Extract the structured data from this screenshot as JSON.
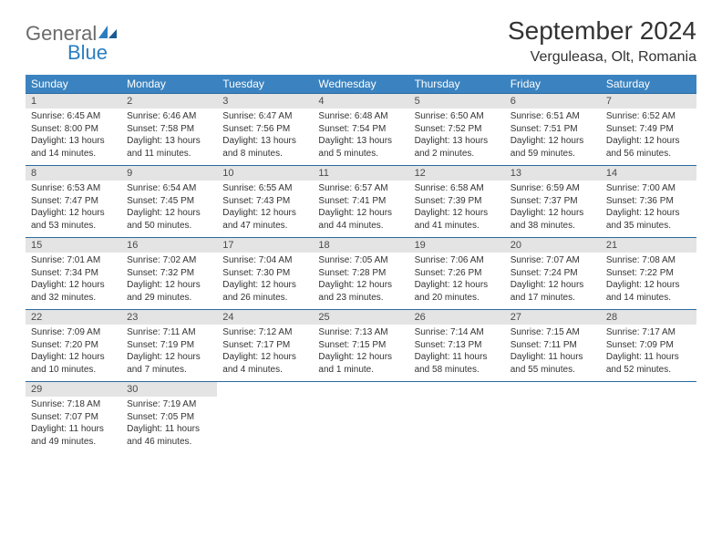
{
  "logo": {
    "text1": "General",
    "text2": "Blue"
  },
  "title": "September 2024",
  "location": "Verguleasa, Olt, Romania",
  "colors": {
    "header_bg": "#3b83c0",
    "header_text": "#ffffff",
    "daynum_bg": "#e4e4e4",
    "daynum_text": "#4a4a4a",
    "body_text": "#333333",
    "week_border": "#2a6aa0",
    "logo_gray": "#6b6b6b",
    "logo_blue": "#2a7ec0"
  },
  "weekdays": [
    "Sunday",
    "Monday",
    "Tuesday",
    "Wednesday",
    "Thursday",
    "Friday",
    "Saturday"
  ],
  "weeks": [
    [
      {
        "n": "1",
        "sr": "6:45 AM",
        "ss": "8:00 PM",
        "dl": "13 hours and 14 minutes."
      },
      {
        "n": "2",
        "sr": "6:46 AM",
        "ss": "7:58 PM",
        "dl": "13 hours and 11 minutes."
      },
      {
        "n": "3",
        "sr": "6:47 AM",
        "ss": "7:56 PM",
        "dl": "13 hours and 8 minutes."
      },
      {
        "n": "4",
        "sr": "6:48 AM",
        "ss": "7:54 PM",
        "dl": "13 hours and 5 minutes."
      },
      {
        "n": "5",
        "sr": "6:50 AM",
        "ss": "7:52 PM",
        "dl": "13 hours and 2 minutes."
      },
      {
        "n": "6",
        "sr": "6:51 AM",
        "ss": "7:51 PM",
        "dl": "12 hours and 59 minutes."
      },
      {
        "n": "7",
        "sr": "6:52 AM",
        "ss": "7:49 PM",
        "dl": "12 hours and 56 minutes."
      }
    ],
    [
      {
        "n": "8",
        "sr": "6:53 AM",
        "ss": "7:47 PM",
        "dl": "12 hours and 53 minutes."
      },
      {
        "n": "9",
        "sr": "6:54 AM",
        "ss": "7:45 PM",
        "dl": "12 hours and 50 minutes."
      },
      {
        "n": "10",
        "sr": "6:55 AM",
        "ss": "7:43 PM",
        "dl": "12 hours and 47 minutes."
      },
      {
        "n": "11",
        "sr": "6:57 AM",
        "ss": "7:41 PM",
        "dl": "12 hours and 44 minutes."
      },
      {
        "n": "12",
        "sr": "6:58 AM",
        "ss": "7:39 PM",
        "dl": "12 hours and 41 minutes."
      },
      {
        "n": "13",
        "sr": "6:59 AM",
        "ss": "7:37 PM",
        "dl": "12 hours and 38 minutes."
      },
      {
        "n": "14",
        "sr": "7:00 AM",
        "ss": "7:36 PM",
        "dl": "12 hours and 35 minutes."
      }
    ],
    [
      {
        "n": "15",
        "sr": "7:01 AM",
        "ss": "7:34 PM",
        "dl": "12 hours and 32 minutes."
      },
      {
        "n": "16",
        "sr": "7:02 AM",
        "ss": "7:32 PM",
        "dl": "12 hours and 29 minutes."
      },
      {
        "n": "17",
        "sr": "7:04 AM",
        "ss": "7:30 PM",
        "dl": "12 hours and 26 minutes."
      },
      {
        "n": "18",
        "sr": "7:05 AM",
        "ss": "7:28 PM",
        "dl": "12 hours and 23 minutes."
      },
      {
        "n": "19",
        "sr": "7:06 AM",
        "ss": "7:26 PM",
        "dl": "12 hours and 20 minutes."
      },
      {
        "n": "20",
        "sr": "7:07 AM",
        "ss": "7:24 PM",
        "dl": "12 hours and 17 minutes."
      },
      {
        "n": "21",
        "sr": "7:08 AM",
        "ss": "7:22 PM",
        "dl": "12 hours and 14 minutes."
      }
    ],
    [
      {
        "n": "22",
        "sr": "7:09 AM",
        "ss": "7:20 PM",
        "dl": "12 hours and 10 minutes."
      },
      {
        "n": "23",
        "sr": "7:11 AM",
        "ss": "7:19 PM",
        "dl": "12 hours and 7 minutes."
      },
      {
        "n": "24",
        "sr": "7:12 AM",
        "ss": "7:17 PM",
        "dl": "12 hours and 4 minutes."
      },
      {
        "n": "25",
        "sr": "7:13 AM",
        "ss": "7:15 PM",
        "dl": "12 hours and 1 minute."
      },
      {
        "n": "26",
        "sr": "7:14 AM",
        "ss": "7:13 PM",
        "dl": "11 hours and 58 minutes."
      },
      {
        "n": "27",
        "sr": "7:15 AM",
        "ss": "7:11 PM",
        "dl": "11 hours and 55 minutes."
      },
      {
        "n": "28",
        "sr": "7:17 AM",
        "ss": "7:09 PM",
        "dl": "11 hours and 52 minutes."
      }
    ],
    [
      {
        "n": "29",
        "sr": "7:18 AM",
        "ss": "7:07 PM",
        "dl": "11 hours and 49 minutes."
      },
      {
        "n": "30",
        "sr": "7:19 AM",
        "ss": "7:05 PM",
        "dl": "11 hours and 46 minutes."
      },
      null,
      null,
      null,
      null,
      null
    ]
  ],
  "labels": {
    "sunrise": "Sunrise:",
    "sunset": "Sunset:",
    "daylight": "Daylight:"
  }
}
